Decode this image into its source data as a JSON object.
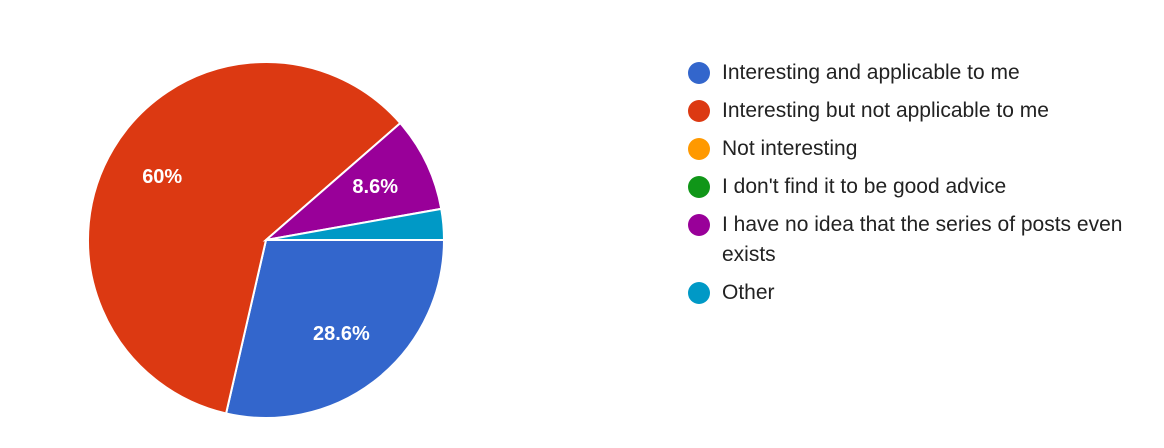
{
  "chart_data": {
    "type": "pie",
    "categories": [
      "Interesting and applicable to me",
      "Interesting but not applicable to me",
      "Not interesting",
      "I don't find it to be good advice",
      "I have no idea that the series of posts even exists",
      "Other"
    ],
    "values": [
      28.6,
      60,
      0,
      0,
      8.6,
      2.8
    ],
    "value_labels": [
      "28.6%",
      "60%",
      null,
      null,
      "8.6%",
      null
    ],
    "colors": [
      "#3366cc",
      "#dc3912",
      "#ff9900",
      "#109618",
      "#990099",
      "#0099c6"
    ],
    "legend": "right"
  }
}
